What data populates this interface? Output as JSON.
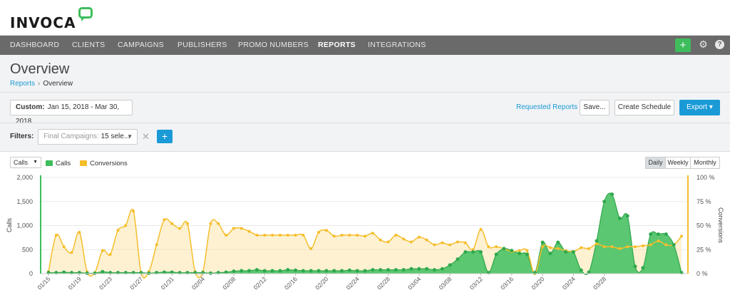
{
  "header": {
    "logo_text": "INVOCA"
  },
  "nav": {
    "items": [
      {
        "label": "DASHBOARD"
      },
      {
        "label": "CLIENTS"
      },
      {
        "label": "CAMPAIGNS"
      },
      {
        "label": "PUBLISHERS"
      },
      {
        "label": "PROMO NUMBERS"
      },
      {
        "label": "REPORTS",
        "active": true
      },
      {
        "label": "INTEGRATIONS"
      }
    ],
    "plus_label": "+",
    "help_label": "?"
  },
  "page": {
    "title": "Overview",
    "breadcrumb": {
      "parent": "Reports",
      "separator": "›",
      "current": "Overview"
    }
  },
  "toolbar": {
    "date_prefix": "Custom:",
    "date_range": "Jan 15, 2018 - Mar 30, 2018",
    "requested_reports": "Requested Reports",
    "save_label": "Save...",
    "schedule_label": "Create Schedule",
    "export_label": "Export ▾"
  },
  "filters": {
    "label": "Filters:",
    "field_name": "Final Campaigns:",
    "field_value": "15 sele...",
    "clear_label": "✕",
    "add_label": "+"
  },
  "chart_controls": {
    "metric_select": "Calls",
    "legend": [
      {
        "label": "Calls",
        "color": "#3ebd5c"
      },
      {
        "label": "Conversions",
        "color": "#f5be2b"
      }
    ],
    "granularity": [
      {
        "label": "Daily",
        "active": true
      },
      {
        "label": "Weekly"
      },
      {
        "label": "Monthly"
      }
    ]
  },
  "chart_data": {
    "type": "area",
    "x_ticks": [
      "01/15",
      "01/19",
      "01/23",
      "01/27",
      "01/31",
      "02/04",
      "02/08",
      "02/12",
      "02/16",
      "02/20",
      "02/24",
      "02/28",
      "03/04",
      "03/08",
      "03/12",
      "03/16",
      "03/20",
      "03/24",
      "03/28"
    ],
    "ylabel": "Calls",
    "y2label": "Conversions",
    "ylim": [
      0,
      2000
    ],
    "y_ticks": [
      "0",
      "500",
      "1,000",
      "1,500",
      "2,000"
    ],
    "y2lim": [
      0,
      100
    ],
    "y2_ticks": [
      "0 %",
      "25 %",
      "50 %",
      "75 %",
      "100 %"
    ],
    "colors": {
      "calls": "#3ebd5c",
      "conversions": "#f5be2b"
    },
    "series": [
      {
        "name": "Calls",
        "axis": "left",
        "values": [
          20,
          20,
          30,
          20,
          20,
          10,
          10,
          40,
          20,
          20,
          20,
          20,
          20,
          10,
          20,
          30,
          30,
          20,
          20,
          20,
          20,
          10,
          20,
          30,
          50,
          60,
          60,
          80,
          60,
          60,
          60,
          80,
          70,
          60,
          60,
          60,
          60,
          60,
          60,
          70,
          60,
          60,
          80,
          80,
          80,
          80,
          80,
          100,
          100,
          100,
          80,
          100,
          180,
          300,
          450,
          450,
          450,
          20,
          400,
          520,
          480,
          420,
          400,
          20,
          650,
          420,
          650,
          450,
          450,
          70,
          30,
          680,
          1500,
          1650,
          1150,
          1200,
          150,
          120,
          820,
          820,
          820,
          600,
          20
        ]
      },
      {
        "name": "Conversions",
        "axis": "right",
        "values": [
          2,
          40,
          28,
          22,
          43,
          2,
          1,
          24,
          20,
          45,
          50,
          65,
          1,
          2,
          30,
          56,
          52,
          47,
          52,
          2,
          2,
          52,
          52,
          40,
          47,
          47,
          44,
          40,
          40,
          40,
          40,
          40,
          40,
          40,
          26,
          43,
          45,
          39,
          40,
          40,
          40,
          39,
          42,
          35,
          33,
          40,
          36,
          33,
          38,
          35,
          30,
          32,
          30,
          33,
          32,
          25,
          46,
          28,
          28,
          26,
          23,
          24,
          24,
          0,
          28,
          27,
          26,
          24,
          23,
          27,
          26,
          31,
          28,
          28,
          26,
          28,
          28,
          29,
          30,
          34,
          30,
          30,
          39
        ]
      }
    ]
  }
}
